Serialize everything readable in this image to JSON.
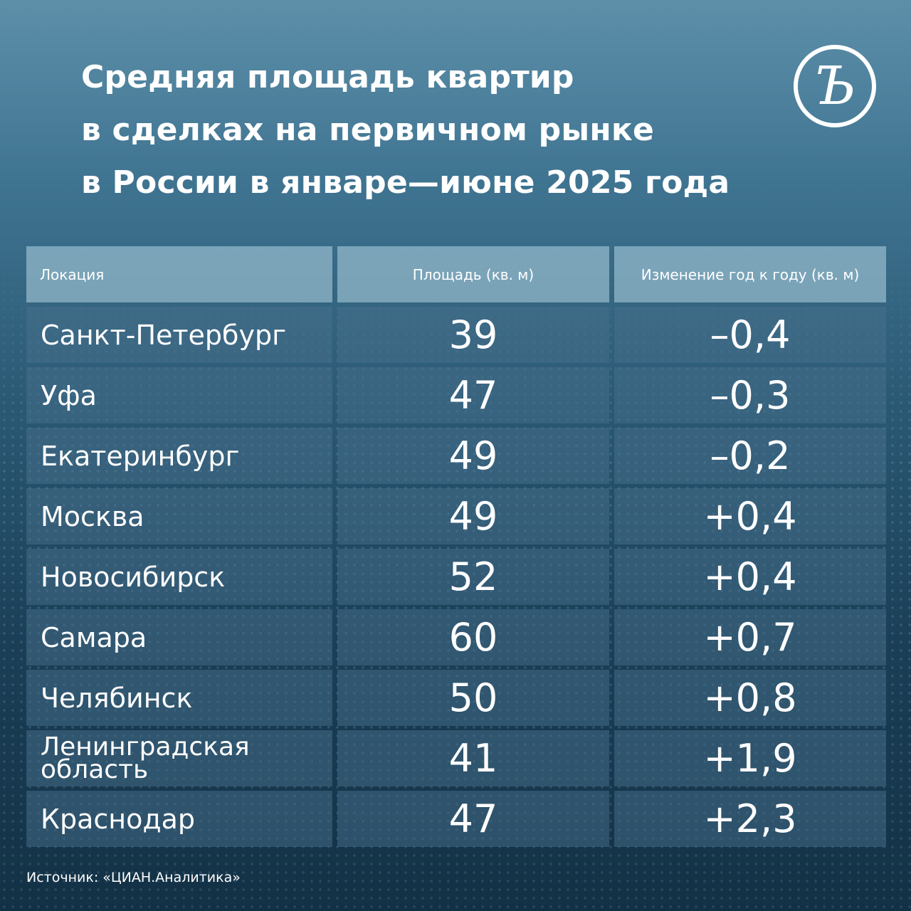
{
  "title_lines": [
    "Средняя площадь квартир",
    "в сделках на первичном рынке",
    "в России в январе—июне 2025 года"
  ],
  "logo": {
    "icon": "kommersant-logo-icon",
    "letter": "Ъ"
  },
  "chart_data": {
    "type": "table",
    "title": "Средняя площадь квартир в сделках на первичном рынке в России в январе—июне 2025 года",
    "columns": [
      "Локация",
      "Площадь (кв. м)",
      "Изменение год к году (кв. м)"
    ],
    "rows": [
      {
        "location": "Санкт-Петербург",
        "area": "39",
        "change": "–0,4"
      },
      {
        "location": "Уфа",
        "area": "47",
        "change": "–0,3"
      },
      {
        "location": "Екатеринбург",
        "area": "49",
        "change": "–0,2"
      },
      {
        "location": "Москва",
        "area": "49",
        "change": "+0,4"
      },
      {
        "location": "Новосибирск",
        "area": "52",
        "change": "+0,4"
      },
      {
        "location": "Самара",
        "area": "60",
        "change": "+0,7"
      },
      {
        "location": "Челябинск",
        "area": "50",
        "change": "+0,8"
      },
      {
        "location": "Ленинградская область",
        "area": "41",
        "change": "+1,9"
      },
      {
        "location": "Краснодар",
        "area": "47",
        "change": "+2,3"
      }
    ]
  },
  "source": "Источник: «ЦИАН.Аналитика»"
}
